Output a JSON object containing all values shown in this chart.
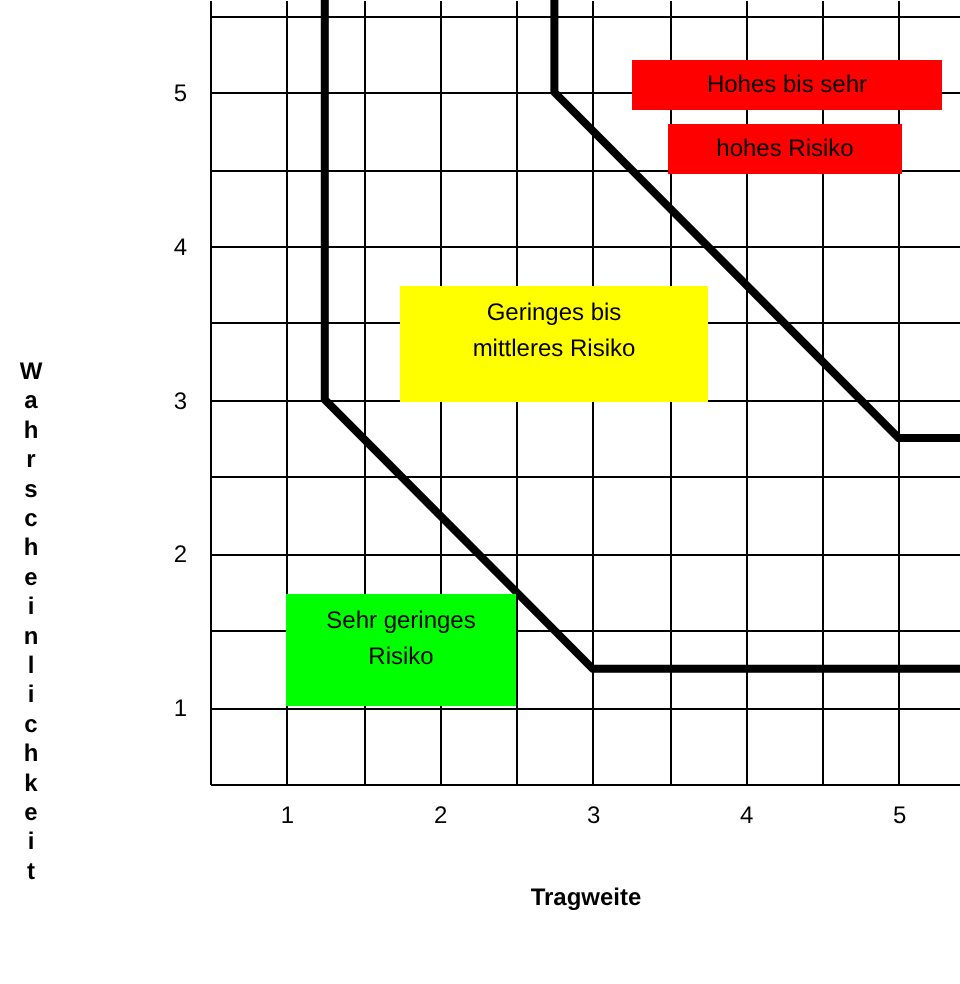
{
  "chart_data": {
    "type": "line",
    "xlabel": "Tragweite",
    "ylabel": "Wahrscheinlichkeit",
    "xlim": [
      0.5,
      5.4
    ],
    "ylim": [
      0.5,
      5.6
    ],
    "xticks": [
      {
        "value": 0.5,
        "label": null
      },
      1,
      {
        "value": 1.5,
        "label": null
      },
      2,
      {
        "value": 2.5,
        "label": null
      },
      3,
      {
        "value": 3.5,
        "label": null
      },
      4,
      {
        "value": 4.5,
        "label": null
      },
      5
    ],
    "yticks": [
      {
        "value": 0.5,
        "label": null
      },
      1,
      {
        "value": 1.5,
        "label": null
      },
      2,
      {
        "value": 2.5,
        "label": null
      },
      3,
      {
        "value": 3.5,
        "label": null
      },
      4,
      {
        "value": 4.5,
        "label": null
      },
      5,
      {
        "value": 5.5,
        "label": null
      }
    ],
    "grid": true,
    "marker": "none",
    "line_style": "solid",
    "series": [
      {
        "color": "#000000",
        "x": [
          1.25,
          1.25,
          3,
          5.4
        ],
        "values": [
          5.6,
          3,
          1.25,
          1.25
        ]
      },
      {
        "color": "#000000",
        "x": [
          2.75,
          2.75,
          5,
          5.4
        ],
        "values": [
          5.6,
          5,
          2.75,
          2.75
        ]
      }
    ],
    "annotations": [
      "Hohes bis sehr\nhohes Risiko",
      "Geringes bis\nmittleres Risiko",
      "Sehr geringes\nRisiko"
    ]
  }
}
